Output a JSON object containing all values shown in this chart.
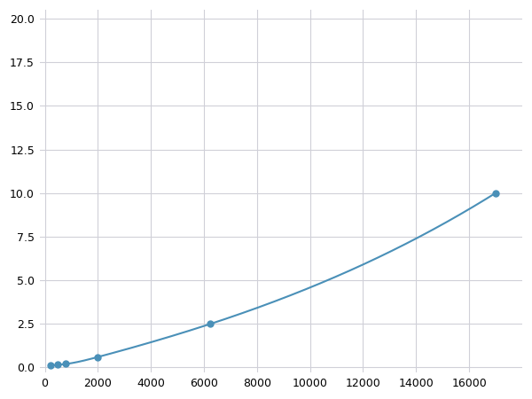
{
  "x": [
    200,
    500,
    800,
    2000,
    6250,
    17000
  ],
  "y": [
    0.1,
    0.15,
    0.2,
    0.6,
    2.5,
    10.0
  ],
  "line_color": "#4a90b8",
  "marker_color": "#4a90b8",
  "marker_size": 5,
  "line_width": 1.5,
  "xlim": [
    -200,
    18000
  ],
  "ylim": [
    -0.3,
    20.5
  ],
  "xticks": [
    0,
    2000,
    4000,
    6000,
    8000,
    10000,
    12000,
    14000,
    16000
  ],
  "yticks": [
    0.0,
    2.5,
    5.0,
    7.5,
    10.0,
    12.5,
    15.0,
    17.5,
    20.0
  ],
  "grid_color": "#d0d0d8",
  "bg_color": "#ffffff",
  "tick_fontsize": 9,
  "fig_bg_color": "#ffffff"
}
